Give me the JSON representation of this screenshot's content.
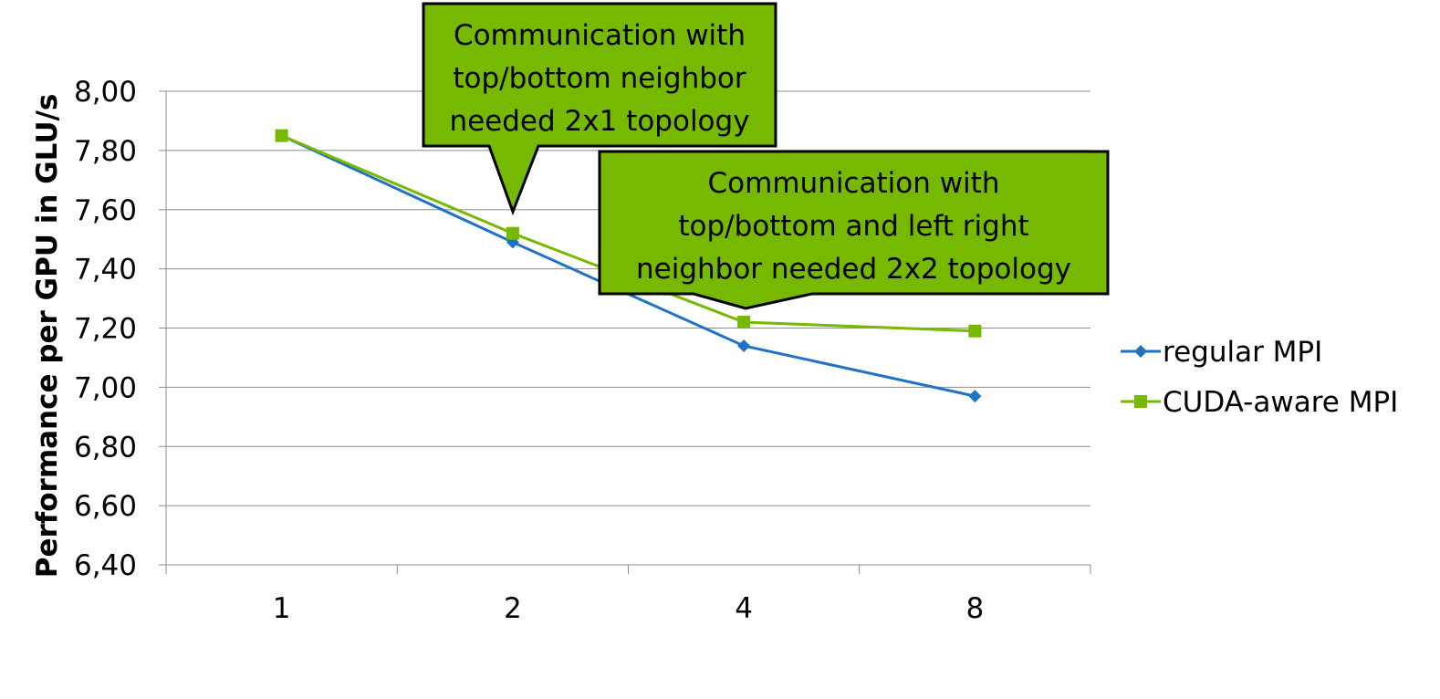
{
  "chart_data": {
    "type": "line",
    "title": "",
    "xlabel": "",
    "ylabel": "Performance per GPU in GLU/s",
    "categories": [
      "1",
      "2",
      "4",
      "8"
    ],
    "ylim": [
      6.4,
      8.0
    ],
    "yticks": [
      "6,40",
      "6,60",
      "6,80",
      "7,00",
      "7,20",
      "7,40",
      "7,60",
      "7,80",
      "8,00"
    ],
    "ytick_values": [
      6.4,
      6.6,
      6.8,
      7.0,
      7.2,
      7.4,
      7.6,
      7.8,
      8.0
    ],
    "grid": true,
    "legend_position": "right",
    "series": [
      {
        "name": "regular MPI",
        "values": [
          7.85,
          7.49,
          7.14,
          6.97
        ],
        "color": "#1f73c4",
        "marker": "diamond"
      },
      {
        "name": "CUDA-aware MPI",
        "values": [
          7.85,
          7.52,
          7.22,
          7.19
        ],
        "color": "#76b900",
        "marker": "square"
      }
    ],
    "annotations": [
      {
        "text": [
          "Communication with",
          "top/bottom neighbor",
          "needed 2x1 topology"
        ],
        "points_to_category": "2",
        "fill": "#76b900"
      },
      {
        "text": [
          "Communication with",
          "top/bottom and left right",
          "neighbor needed 2x2 topology"
        ],
        "points_to_category": "4",
        "fill": "#76b900"
      }
    ]
  }
}
